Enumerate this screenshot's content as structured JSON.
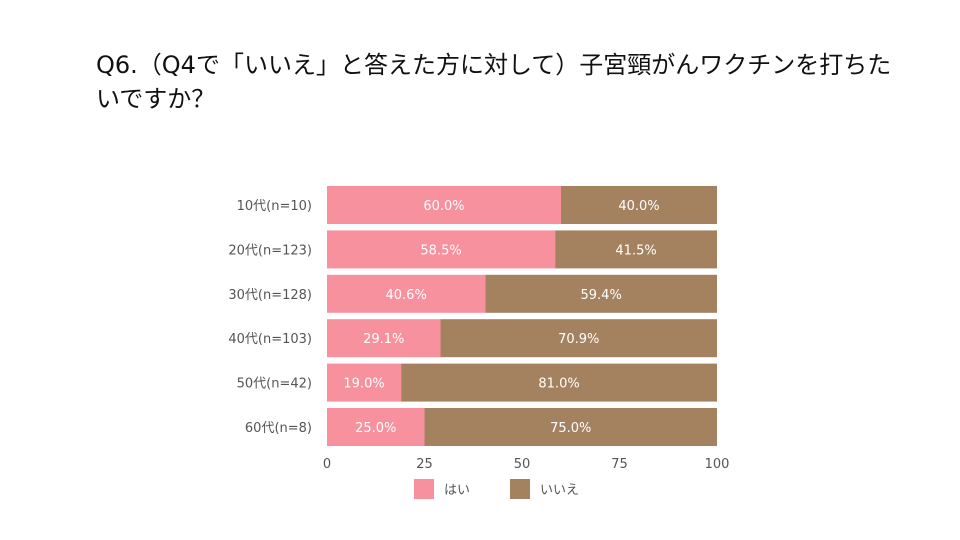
{
  "page": {
    "title_line1": "Q6.（Q4で「いいえ」と答えた方に対して）子宮頸がんワクチンを打ちた",
    "title_line2": "いですか？"
  },
  "chart_data": {
    "type": "bar",
    "orientation": "horizontal",
    "stacked": true,
    "title": "Q6.（Q4で「いいえ」と答えた方に対して）子宮頸がんワクチンを打ちたいですか？",
    "categories": [
      "10代(n=10)",
      "20代(n=123)",
      "30代(n=128)",
      "40代(n=103)",
      "50代(n=42)",
      "60代(n=8)"
    ],
    "series": [
      {
        "name": "はい",
        "color": "#f7919e",
        "values": [
          60.0,
          58.5,
          40.6,
          29.1,
          19.0,
          25.0
        ],
        "labels": [
          "60.0%",
          "58.5%",
          "40.6%",
          "29.1%",
          "19.0%",
          "25.0%"
        ]
      },
      {
        "name": "いいえ",
        "color": "#a5825f",
        "values": [
          40.0,
          41.5,
          59.4,
          70.9,
          81.0,
          75.0
        ],
        "labels": [
          "40.0%",
          "41.5%",
          "59.4%",
          "70.9%",
          "81.0%",
          "75.0%"
        ]
      }
    ],
    "xlim": [
      0,
      100
    ],
    "xticks": [
      0,
      25,
      50,
      75,
      100
    ],
    "xtick_labels": [
      "0",
      "25",
      "50",
      "75",
      "100"
    ],
    "legend_position": "bottom-center",
    "grid": false
  }
}
